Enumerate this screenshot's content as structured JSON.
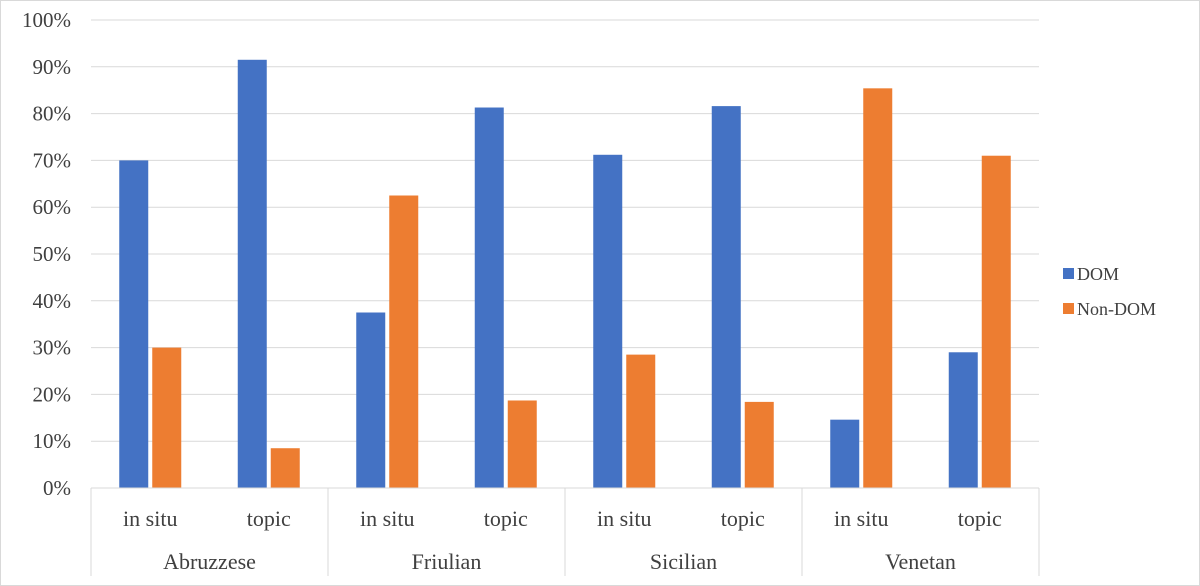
{
  "chart_data": {
    "type": "bar",
    "title": "",
    "xlabel": "",
    "ylabel": "",
    "ylim": [
      0,
      100
    ],
    "y_ticks": [
      "0%",
      "10%",
      "20%",
      "30%",
      "40%",
      "50%",
      "60%",
      "70%",
      "80%",
      "90%",
      "100%"
    ],
    "grid": true,
    "legend_position": "right",
    "groups": [
      "Abruzzese",
      "Friulian",
      "Sicilian",
      "Venetan"
    ],
    "categories": [
      "in situ",
      "topic",
      "in situ",
      "topic",
      "in situ",
      "topic",
      "in situ",
      "topic"
    ],
    "series": [
      {
        "name": "DOM",
        "color": "#4472c4",
        "values": [
          70,
          91.5,
          37.5,
          81.3,
          71.2,
          81.6,
          14.6,
          29
        ]
      },
      {
        "name": "Non-DOM",
        "color": "#ed7d31",
        "values": [
          30,
          8.5,
          62.5,
          18.7,
          28.5,
          18.4,
          85.4,
          71
        ]
      }
    ]
  }
}
